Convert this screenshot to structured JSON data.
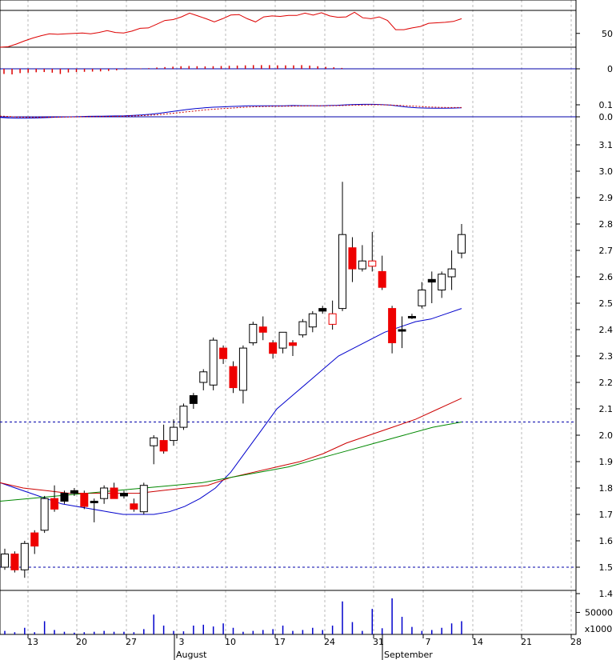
{
  "chart_data": [
    {
      "type": "line",
      "panel": "oscillator",
      "yticks": [
        {
          "value": 50,
          "label": "50"
        }
      ],
      "ylim": [
        0,
        100
      ],
      "reference_lines": [
        100,
        20
      ],
      "series": [
        {
          "color": "#dd0000",
          "values": [
            20,
            21,
            27,
            34,
            40,
            45,
            49,
            48,
            49,
            50,
            51,
            49,
            52,
            56,
            52,
            51,
            55,
            61,
            62,
            70,
            78,
            80,
            86,
            94,
            88,
            82,
            75,
            82,
            90,
            91,
            82,
            75,
            86,
            88,
            87,
            89,
            89,
            94,
            90,
            95,
            88,
            85,
            86,
            96,
            84,
            82,
            86,
            78,
            58,
            58,
            62,
            65,
            72,
            73,
            74,
            76,
            82
          ]
        }
      ]
    },
    {
      "type": "bar",
      "panel": "histogram",
      "yticks": [
        {
          "value": 0,
          "label": "0"
        }
      ],
      "ylim": [
        -0.1,
        0.1
      ],
      "color": "#dd0000",
      "values": [
        -0.024,
        -0.026,
        -0.02,
        -0.018,
        -0.016,
        -0.015,
        -0.018,
        -0.024,
        -0.017,
        -0.015,
        -0.014,
        -0.013,
        -0.012,
        -0.01,
        -0.007,
        -0.003,
        0.0,
        0.002,
        0.003,
        0.006,
        0.008,
        0.01,
        0.012,
        0.013,
        0.012,
        0.011,
        0.012,
        0.013,
        0.014,
        0.015,
        0.016,
        0.017,
        0.017,
        0.017,
        0.016,
        0.016,
        0.016,
        0.017,
        0.015,
        0.012,
        0.009,
        0.007,
        0.004,
        0.0,
        0.0,
        0.0,
        0.0,
        0.0,
        0.0,
        0.0,
        0.001,
        0.0,
        0.0,
        0.0,
        0.0
      ]
    },
    {
      "type": "line",
      "panel": "macd",
      "yticks": [
        {
          "value": 0.1,
          "label": "0.1"
        },
        {
          "value": 0.0,
          "label": "0.0"
        }
      ],
      "ylim": [
        -0.02,
        0.17
      ],
      "series": [
        {
          "color": "#0000cc",
          "values": [
            -0.005,
            -0.01,
            -0.012,
            -0.012,
            -0.01,
            -0.007,
            -0.004,
            -0.001,
            0.0,
            0.002,
            0.004,
            0.005,
            0.006,
            0.007,
            0.008,
            0.012,
            0.016,
            0.022,
            0.03,
            0.04,
            0.05,
            0.06,
            0.068,
            0.075,
            0.08,
            0.083,
            0.086,
            0.089,
            0.091,
            0.092,
            0.092,
            0.091,
            0.092,
            0.094,
            0.093,
            0.093,
            0.092,
            0.094,
            0.096,
            0.1,
            0.103,
            0.104,
            0.104,
            0.102,
            0.097,
            0.088,
            0.08,
            0.075,
            0.073,
            0.072,
            0.072,
            0.073,
            0.075
          ]
        },
        {
          "color": "#cc0000",
          "values": [
            0.006,
            0.003,
            -0.003,
            -0.004,
            -0.005,
            -0.004,
            -0.003,
            -0.002,
            -0.001,
            0.0,
            0.001,
            0.002,
            0.003,
            0.004,
            0.005,
            0.007,
            0.01,
            0.014,
            0.019,
            0.026,
            0.033,
            0.041,
            0.049,
            0.057,
            0.063,
            0.068,
            0.072,
            0.077,
            0.081,
            0.084,
            0.086,
            0.087,
            0.088,
            0.089,
            0.09,
            0.091,
            0.091,
            0.092,
            0.093,
            0.095,
            0.097,
            0.098,
            0.1,
            0.1,
            0.098,
            0.095,
            0.091,
            0.087,
            0.083,
            0.08,
            0.078,
            0.077,
            0.077
          ]
        }
      ]
    },
    {
      "type": "candlestick",
      "panel": "price",
      "yticks": [
        {
          "value": 3.1,
          "label": "3.1"
        },
        {
          "value": 3.0,
          "label": "3.0"
        },
        {
          "value": 2.9,
          "label": "2.9"
        },
        {
          "value": 2.8,
          "label": "2.8"
        },
        {
          "value": 2.7,
          "label": "2.7"
        },
        {
          "value": 2.6,
          "label": "2.6"
        },
        {
          "value": 2.5,
          "label": "2.5"
        },
        {
          "value": 2.4,
          "label": "2.4"
        },
        {
          "value": 2.3,
          "label": "2.3"
        },
        {
          "value": 2.2,
          "label": "2.2"
        },
        {
          "value": 2.1,
          "label": "2.1"
        },
        {
          "value": 2.0,
          "label": "2.0"
        },
        {
          "value": 1.9,
          "label": "1.9"
        },
        {
          "value": 1.8,
          "label": "1.8"
        },
        {
          "value": 1.7,
          "label": "1.7"
        },
        {
          "value": 1.6,
          "label": "1.6"
        },
        {
          "value": 1.5,
          "label": "1.5"
        },
        {
          "value": 1.4,
          "label": "1.4"
        }
      ],
      "ylim": [
        1.35,
        3.15
      ],
      "reference_lines": [
        2.05,
        1.5
      ],
      "x_labels": [
        "13",
        "20",
        "27",
        "3",
        "10",
        "17",
        "24",
        "31",
        "7",
        "14",
        "21",
        "28"
      ],
      "month_labels": [
        "August",
        "September"
      ],
      "candles": [
        {
          "o": 1.5,
          "h": 1.57,
          "l": 1.49,
          "c": 1.55,
          "col": "w"
        },
        {
          "o": 1.55,
          "h": 1.56,
          "l": 1.48,
          "c": 1.49,
          "col": "r"
        },
        {
          "o": 1.49,
          "h": 1.6,
          "l": 1.46,
          "c": 1.59,
          "col": "w"
        },
        {
          "o": 1.63,
          "h": 1.64,
          "l": 1.55,
          "c": 1.58,
          "col": "r"
        },
        {
          "o": 1.64,
          "h": 1.77,
          "l": 1.63,
          "c": 1.76,
          "col": "w"
        },
        {
          "o": 1.76,
          "h": 1.81,
          "l": 1.71,
          "c": 1.72,
          "col": "r"
        },
        {
          "o": 1.78,
          "h": 1.79,
          "l": 1.74,
          "c": 1.75,
          "col": "k"
        },
        {
          "o": 1.78,
          "h": 1.8,
          "l": 1.77,
          "c": 1.79,
          "col": "k"
        },
        {
          "o": 1.78,
          "h": 1.79,
          "l": 1.72,
          "c": 1.73,
          "col": "r"
        },
        {
          "o": 1.75,
          "h": 1.76,
          "l": 1.67,
          "c": 1.75,
          "col": "k"
        },
        {
          "o": 1.76,
          "h": 1.81,
          "l": 1.74,
          "c": 1.8,
          "col": "w"
        },
        {
          "o": 1.8,
          "h": 1.82,
          "l": 1.76,
          "c": 1.76,
          "col": "r"
        },
        {
          "o": 1.77,
          "h": 1.79,
          "l": 1.76,
          "c": 1.78,
          "col": "k"
        },
        {
          "o": 1.74,
          "h": 1.76,
          "l": 1.71,
          "c": 1.72,
          "col": "r"
        },
        {
          "o": 1.71,
          "h": 1.82,
          "l": 1.7,
          "c": 1.81,
          "col": "w"
        },
        {
          "o": 1.96,
          "h": 2.0,
          "l": 1.89,
          "c": 1.99,
          "col": "w"
        },
        {
          "o": 1.98,
          "h": 2.04,
          "l": 1.93,
          "c": 1.94,
          "col": "r"
        },
        {
          "o": 1.98,
          "h": 2.06,
          "l": 1.96,
          "c": 2.03,
          "col": "w"
        },
        {
          "o": 2.03,
          "h": 2.12,
          "l": 2.02,
          "c": 2.11,
          "col": "w"
        },
        {
          "o": 2.12,
          "h": 2.16,
          "l": 2.1,
          "c": 2.15,
          "col": "k"
        },
        {
          "o": 2.2,
          "h": 2.25,
          "l": 2.17,
          "c": 2.24,
          "col": "w"
        },
        {
          "o": 2.19,
          "h": 2.37,
          "l": 2.17,
          "c": 2.36,
          "col": "w"
        },
        {
          "o": 2.33,
          "h": 2.34,
          "l": 2.27,
          "c": 2.29,
          "col": "r"
        },
        {
          "o": 2.26,
          "h": 2.28,
          "l": 2.16,
          "c": 2.18,
          "col": "r"
        },
        {
          "o": 2.17,
          "h": 2.34,
          "l": 2.12,
          "c": 2.33,
          "col": "w"
        },
        {
          "o": 2.35,
          "h": 2.43,
          "l": 2.34,
          "c": 2.42,
          "col": "w"
        },
        {
          "o": 2.41,
          "h": 2.45,
          "l": 2.36,
          "c": 2.39,
          "col": "r"
        },
        {
          "o": 2.35,
          "h": 2.36,
          "l": 2.29,
          "c": 2.31,
          "col": "r"
        },
        {
          "o": 2.33,
          "h": 2.39,
          "l": 2.31,
          "c": 2.39,
          "col": "w"
        },
        {
          "o": 2.35,
          "h": 2.36,
          "l": 2.3,
          "c": 2.34,
          "col": "r"
        },
        {
          "o": 2.38,
          "h": 2.44,
          "l": 2.37,
          "c": 2.43,
          "col": "w"
        },
        {
          "o": 2.41,
          "h": 2.47,
          "l": 2.39,
          "c": 2.46,
          "col": "w"
        },
        {
          "o": 2.47,
          "h": 2.49,
          "l": 2.46,
          "c": 2.48,
          "col": "k"
        },
        {
          "o": 2.46,
          "h": 2.51,
          "l": 2.4,
          "c": 2.42,
          "col": "or"
        },
        {
          "o": 2.48,
          "h": 2.96,
          "l": 2.47,
          "c": 2.76,
          "col": "w"
        },
        {
          "o": 2.71,
          "h": 2.75,
          "l": 2.58,
          "c": 2.63,
          "col": "r"
        },
        {
          "o": 2.63,
          "h": 2.72,
          "l": 2.62,
          "c": 2.66,
          "col": "w"
        },
        {
          "o": 2.66,
          "h": 2.77,
          "l": 2.62,
          "c": 2.64,
          "col": "or"
        },
        {
          "o": 2.62,
          "h": 2.68,
          "l": 2.55,
          "c": 2.56,
          "col": "r"
        },
        {
          "o": 2.48,
          "h": 2.49,
          "l": 2.31,
          "c": 2.35,
          "col": "r"
        },
        {
          "o": 2.4,
          "h": 2.45,
          "l": 2.33,
          "c": 2.4,
          "col": "k"
        },
        {
          "o": 2.45,
          "h": 2.46,
          "l": 2.44,
          "c": 2.45,
          "col": "k"
        },
        {
          "o": 2.49,
          "h": 2.58,
          "l": 2.48,
          "c": 2.55,
          "col": "w"
        },
        {
          "o": 2.58,
          "h": 2.62,
          "l": 2.5,
          "c": 2.59,
          "col": "k"
        },
        {
          "o": 2.55,
          "h": 2.62,
          "l": 2.52,
          "c": 2.61,
          "col": "w"
        },
        {
          "o": 2.6,
          "h": 2.7,
          "l": 2.55,
          "c": 2.63,
          "col": "w"
        },
        {
          "o": 2.69,
          "h": 2.8,
          "l": 2.67,
          "c": 2.76,
          "col": "w"
        }
      ],
      "moving_averages": [
        {
          "color": "#0000cc",
          "values": [
            1.82,
            1.8,
            1.78,
            1.76,
            1.74,
            1.73,
            1.72,
            1.71,
            1.7,
            1.7,
            1.7,
            1.71,
            1.73,
            1.76,
            1.8,
            1.86,
            1.94,
            2.02,
            2.1,
            2.15,
            2.2,
            2.25,
            2.3,
            2.33,
            2.36,
            2.39,
            2.41,
            2.43,
            2.44,
            2.46,
            2.48
          ]
        },
        {
          "color": "#cc0000",
          "values": [
            1.82,
            1.8,
            1.79,
            1.78,
            1.78,
            1.78,
            1.78,
            1.79,
            1.8,
            1.81,
            1.84,
            1.86,
            1.88,
            1.9,
            1.93,
            1.97,
            2.0,
            2.03,
            2.06,
            2.1,
            2.14
          ]
        },
        {
          "color": "#008800",
          "values": [
            1.75,
            1.76,
            1.77,
            1.78,
            1.79,
            1.8,
            1.81,
            1.82,
            1.84,
            1.86,
            1.88,
            1.91,
            1.94,
            1.97,
            2.0,
            2.03,
            2.05
          ]
        }
      ]
    },
    {
      "type": "bar",
      "panel": "volume",
      "yticks": [
        {
          "value": 50000,
          "label": "50000"
        }
      ],
      "ylabel": "x1000",
      "ylim": [
        0,
        100000
      ],
      "color": "#0000cc",
      "values": [
        8000,
        5000,
        15000,
        5000,
        30000,
        10000,
        6000,
        4000,
        5000,
        6000,
        8000,
        6000,
        6000,
        5000,
        12000,
        45000,
        20000,
        8000,
        7000,
        20000,
        22000,
        18000,
        25000,
        15000,
        6000,
        8000,
        10000,
        12000,
        20000,
        8000,
        10000,
        15000,
        10000,
        20000,
        75000,
        28000,
        8000,
        58000,
        14000,
        82000,
        40000,
        17000,
        8000,
        10000,
        15000,
        25000,
        30000
      ]
    }
  ]
}
